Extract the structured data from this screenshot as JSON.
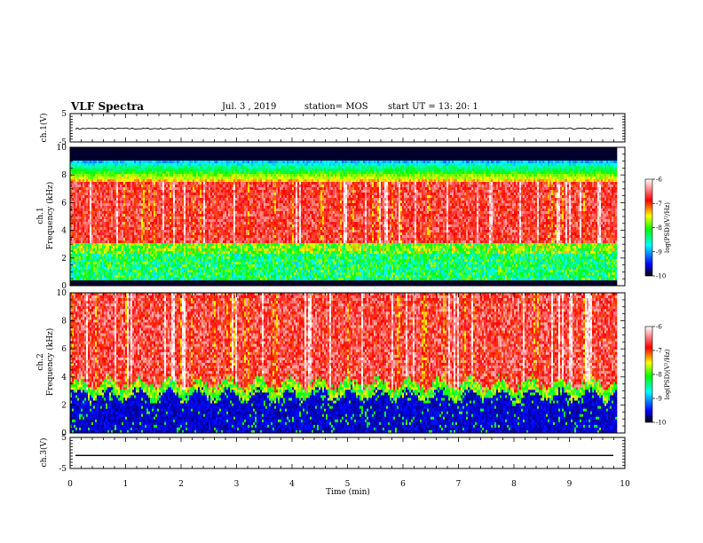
{
  "header": {
    "title": "VLF Spectra",
    "date": "Jul.  3  , 2019",
    "station": "station= MOS",
    "start": "start  UT =   13: 20: 1"
  },
  "chart_data": [
    {
      "type": "line",
      "panel": "ch1-waveform",
      "ylabel": "ch.1(V)",
      "ylim": [
        -5,
        5
      ],
      "ytick_labels": [
        "5",
        "-5"
      ],
      "xlim": [
        0,
        10
      ],
      "series": [
        {
          "values": [
            -0.3
          ]
        }
      ]
    },
    {
      "type": "heatmap",
      "panel": "ch1-spectrogram",
      "ylabel": "ch.1\nFrequency  (kHz)",
      "ylim": [
        0,
        10
      ],
      "ytick_labels": [
        "0",
        "2",
        "4",
        "6",
        "8",
        "10"
      ],
      "xlim": [
        0,
        9.83
      ],
      "colorbar": {
        "label": "log(PSD)(V²/Hz)",
        "range": [
          -10,
          -6
        ],
        "tick_labels": [
          "-6",
          "-7",
          "-8",
          "-9",
          "-10"
        ]
      },
      "bands_kHz": [
        {
          "from": 0,
          "to": 0.3,
          "level": "black"
        },
        {
          "from": 0.3,
          "to": 3.0,
          "level": "-8.5 (blue/cyan/green, mixed)"
        },
        {
          "from": 3.0,
          "to": 7.5,
          "level": "-6.8 (red/yellow)"
        },
        {
          "from": 7.5,
          "to": 9.0,
          "level": "-8 (green/cyan/blue)"
        },
        {
          "from": 9.0,
          "to": 10.0,
          "level": "black"
        }
      ]
    },
    {
      "type": "heatmap",
      "panel": "ch2-spectrogram",
      "ylabel": "ch.2\nFrequency  (kHz)",
      "ylim": [
        0,
        10
      ],
      "ytick_labels": [
        "0",
        "2",
        "4",
        "6",
        "8",
        "10"
      ],
      "xlim": [
        0,
        9.83
      ],
      "colorbar": {
        "label": "log(PSD)(V²/Hz)",
        "range": [
          -10,
          -6
        ],
        "tick_labels": [
          "-6",
          "-7",
          "-8",
          "-9",
          "-10"
        ]
      },
      "bands_kHz": [
        {
          "from": 0,
          "to": 3.2,
          "level": "-9.5 (black/blue, spiky)"
        },
        {
          "from": 3.2,
          "to": 4.2,
          "level": "-8 (green/yellow)"
        },
        {
          "from": 4.2,
          "to": 10.0,
          "level": "-6.8 (red/yellow/white)"
        }
      ]
    },
    {
      "type": "line",
      "panel": "ch3-waveform",
      "ylabel": "ch.3(V)",
      "ylim": [
        -5,
        5
      ],
      "ytick_labels": [
        "5",
        "-5"
      ],
      "xlim": [
        0,
        10
      ],
      "series": [
        {
          "values": [
            -0.8
          ]
        }
      ]
    }
  ],
  "xaxis": {
    "label": "Time  (min)",
    "ticks": [
      "0",
      "1",
      "2",
      "3",
      "4",
      "5",
      "6",
      "7",
      "8",
      "9",
      "10"
    ]
  },
  "colors": {
    "colormap": [
      "#000000",
      "#0000ff",
      "#00ffff",
      "#00ff00",
      "#ffff00",
      "#ff0000",
      "#ffffff"
    ],
    "axis": "#000000"
  }
}
